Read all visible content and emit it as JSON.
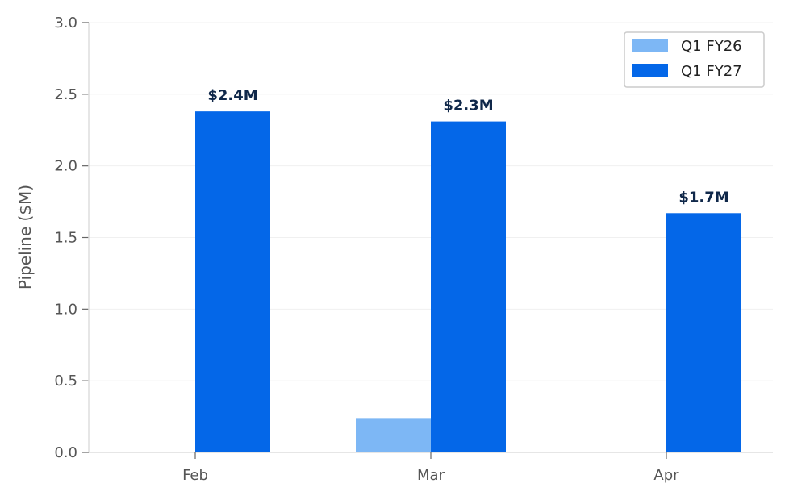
{
  "chart_data": {
    "type": "bar",
    "categories": [
      "Feb",
      "Mar",
      "Apr"
    ],
    "series": [
      {
        "name": "Q1 FY26",
        "color": "#7db7f5",
        "values": [
          0,
          0.24,
          0
        ]
      },
      {
        "name": "Q1 FY27",
        "color": "#0467e8",
        "values": [
          2.38,
          2.31,
          1.67
        ]
      }
    ],
    "data_labels": [
      "$2.4M",
      "$2.3M",
      "$1.7M"
    ],
    "data_label_series": "Q1 FY27",
    "ylabel": "Pipeline ($M)",
    "xlabel": "",
    "ylim": [
      0,
      3.0
    ],
    "yticks": [
      "0.0",
      "0.5",
      "1.0",
      "1.5",
      "2.0",
      "2.5",
      "3.0"
    ],
    "grid": "horizontal",
    "legend_position": "top-right"
  }
}
